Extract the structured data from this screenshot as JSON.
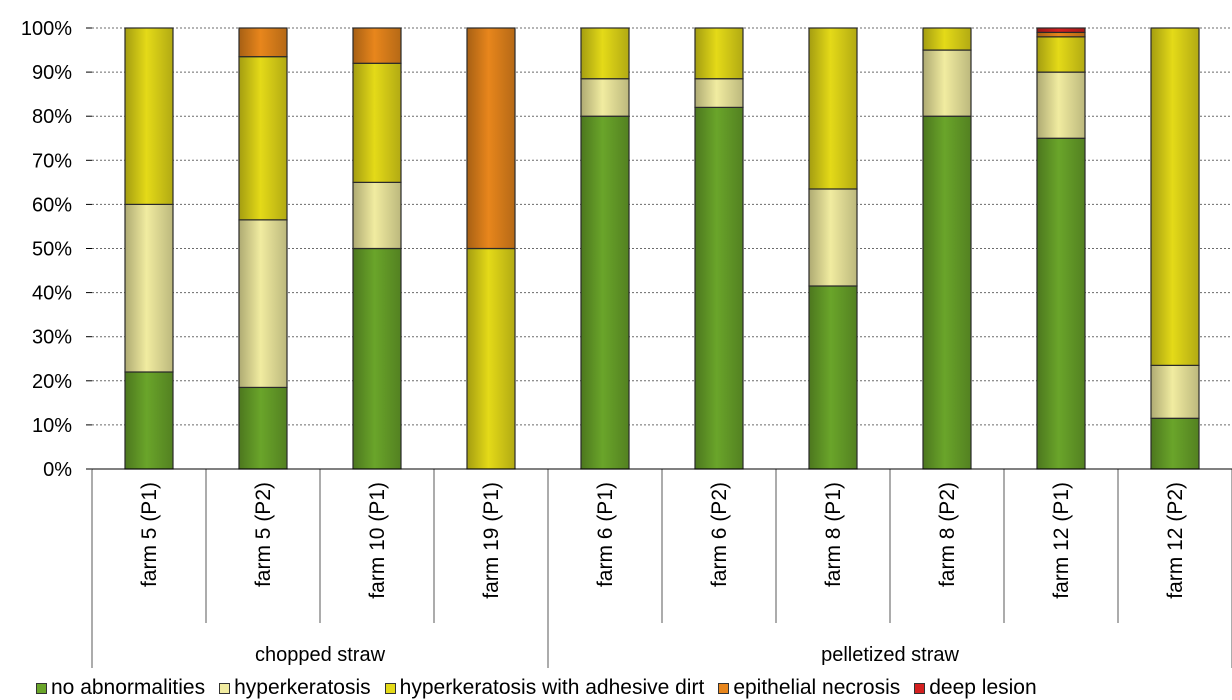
{
  "chart_data": {
    "type": "bar",
    "stacked": true,
    "y_tick_labels": [
      "0%",
      "10%",
      "20%",
      "30%",
      "40%",
      "50%",
      "60%",
      "70%",
      "80%",
      "90%",
      "100%"
    ],
    "ylim": [
      0,
      100
    ],
    "grid": true,
    "categories": [
      "farm 5 (P1)",
      "farm 5 (P2)",
      "farm 10 (P1)",
      "farm 19 (P1)",
      "farm 6 (P1)",
      "farm 6 (P2)",
      "farm 8 (P1)",
      "farm 8 (P2)",
      "farm 12 (P1)",
      "farm 12 (P2)"
    ],
    "groups": [
      {
        "label": "chopped straw",
        "categories": 4
      },
      {
        "label": "pelletized straw",
        "categories": 6
      }
    ],
    "series": [
      {
        "name": "no abnormalities",
        "color": "#6aa52a",
        "values": [
          22,
          18.5,
          50,
          0,
          80,
          82,
          41.5,
          80,
          75,
          11.5
        ]
      },
      {
        "name": "hyperkeratosis",
        "color": "#f1eca0",
        "values": [
          38,
          38,
          15,
          0,
          8.5,
          6.5,
          22,
          15,
          15,
          12
        ]
      },
      {
        "name": "hyperkeratosis with adhesive dirt",
        "color": "#e4da18",
        "values": [
          40,
          37,
          27,
          50,
          11.5,
          11.5,
          36.5,
          5,
          8,
          76.5
        ]
      },
      {
        "name": "epithelial necrosis",
        "color": "#e8861c",
        "values": [
          0,
          6.5,
          8,
          50,
          0,
          0,
          0,
          0,
          1,
          0
        ]
      },
      {
        "name": "deep lesion",
        "color": "#d42020",
        "values": [
          0,
          0,
          0,
          0,
          0,
          0,
          0,
          0,
          1,
          0
        ]
      }
    ],
    "legend_position": "bottom"
  }
}
